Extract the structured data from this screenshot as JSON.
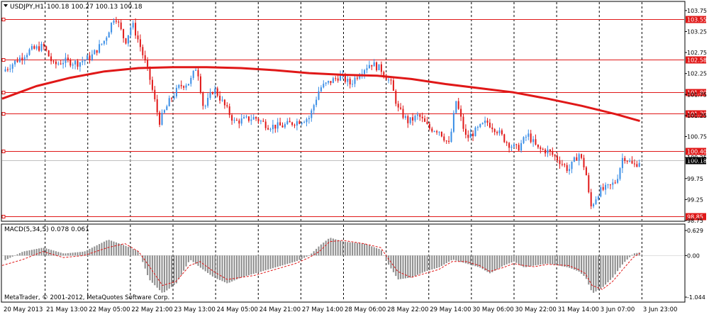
{
  "window": {
    "header_symbol": "USDJPY,H1",
    "header_ohlc": "100.18 100.27 100.13 100.18",
    "watermark": "MetaTrader, © 2001-2012, MetaQuotes Software Corp."
  },
  "colors": {
    "background": "#ffffff",
    "bull": "#3a8ee6",
    "bear": "#e01818",
    "level_line": "#e01818",
    "moving_average": "#e01818",
    "grid": "#000000",
    "current_price_line": "#c0c0c0",
    "macd_hist": "#8c8c8c",
    "macd_signal": "#e01818"
  },
  "chart_data": [
    {
      "type": "candlestick",
      "symbol": "USDJPY",
      "timeframe": "H1",
      "ylim": [
        98.75,
        103.95
      ],
      "y_ticks": [
        "103.75",
        "103.25",
        "102.75",
        "102.25",
        "101.75",
        "101.25",
        "100.75",
        "100.25",
        "99.75",
        "99.25",
        "98.75"
      ],
      "x_labels": [
        "20 May 2013",
        "21 May 13:00",
        "22 May 05:00",
        "22 May 21:00",
        "23 May 13:00",
        "24 May 05:00",
        "24 May 21:00",
        "27 May 14:00",
        "28 May 06:00",
        "28 May 22:00",
        "29 May 14:00",
        "30 May 06:00",
        "30 May 22:00",
        "31 May 14:00",
        "3 Jun 07:00",
        "3 Jun 23:00"
      ],
      "horizontal_levels": [
        {
          "label": "103.55",
          "value": 103.55
        },
        {
          "label": "102.58",
          "value": 102.58
        },
        {
          "label": "101.80",
          "value": 101.8
        },
        {
          "label": "101.30",
          "value": 101.3
        },
        {
          "label": "100.40",
          "value": 100.4
        },
        {
          "label": "98.85",
          "value": 98.85
        }
      ],
      "current_price": {
        "label": "100.18",
        "value": 100.18
      },
      "price_path": [
        {
          "x": 0.0,
          "y": 102.3
        },
        {
          "x": 0.02,
          "y": 102.55
        },
        {
          "x": 0.04,
          "y": 102.8
        },
        {
          "x": 0.06,
          "y": 102.9
        },
        {
          "x": 0.075,
          "y": 102.45
        },
        {
          "x": 0.09,
          "y": 102.55
        },
        {
          "x": 0.11,
          "y": 102.5
        },
        {
          "x": 0.13,
          "y": 102.65
        },
        {
          "x": 0.15,
          "y": 103.05
        },
        {
          "x": 0.165,
          "y": 103.65
        },
        {
          "x": 0.18,
          "y": 103.0
        },
        {
          "x": 0.19,
          "y": 103.45
        },
        {
          "x": 0.2,
          "y": 103.0
        },
        {
          "x": 0.215,
          "y": 102.2
        },
        {
          "x": 0.23,
          "y": 101.1
        },
        {
          "x": 0.245,
          "y": 101.6
        },
        {
          "x": 0.26,
          "y": 101.95
        },
        {
          "x": 0.275,
          "y": 102.05
        },
        {
          "x": 0.285,
          "y": 102.45
        },
        {
          "x": 0.295,
          "y": 101.4
        },
        {
          "x": 0.31,
          "y": 101.9
        },
        {
          "x": 0.325,
          "y": 101.5
        },
        {
          "x": 0.34,
          "y": 101.1
        },
        {
          "x": 0.355,
          "y": 101.15
        },
        {
          "x": 0.37,
          "y": 101.2
        },
        {
          "x": 0.39,
          "y": 101.0
        },
        {
          "x": 0.41,
          "y": 101.0
        },
        {
          "x": 0.43,
          "y": 101.1
        },
        {
          "x": 0.45,
          "y": 101.2
        },
        {
          "x": 0.465,
          "y": 101.9
        },
        {
          "x": 0.48,
          "y": 102.05
        },
        {
          "x": 0.495,
          "y": 102.2
        },
        {
          "x": 0.51,
          "y": 102.0
        },
        {
          "x": 0.525,
          "y": 102.3
        },
        {
          "x": 0.54,
          "y": 102.5
        },
        {
          "x": 0.555,
          "y": 102.35
        },
        {
          "x": 0.57,
          "y": 102.0
        },
        {
          "x": 0.58,
          "y": 101.4
        },
        {
          "x": 0.595,
          "y": 101.1
        },
        {
          "x": 0.61,
          "y": 101.25
        },
        {
          "x": 0.625,
          "y": 100.95
        },
        {
          "x": 0.64,
          "y": 100.9
        },
        {
          "x": 0.655,
          "y": 100.55
        },
        {
          "x": 0.665,
          "y": 101.6
        },
        {
          "x": 0.68,
          "y": 100.7
        },
        {
          "x": 0.695,
          "y": 100.9
        },
        {
          "x": 0.71,
          "y": 101.1
        },
        {
          "x": 0.725,
          "y": 100.9
        },
        {
          "x": 0.74,
          "y": 100.6
        },
        {
          "x": 0.755,
          "y": 100.45
        },
        {
          "x": 0.77,
          "y": 100.8
        },
        {
          "x": 0.785,
          "y": 100.45
        },
        {
          "x": 0.8,
          "y": 100.4
        },
        {
          "x": 0.815,
          "y": 100.2
        },
        {
          "x": 0.83,
          "y": 99.95
        },
        {
          "x": 0.845,
          "y": 100.35
        },
        {
          "x": 0.855,
          "y": 99.95
        },
        {
          "x": 0.862,
          "y": 99.05
        },
        {
          "x": 0.875,
          "y": 99.45
        },
        {
          "x": 0.89,
          "y": 99.55
        },
        {
          "x": 0.9,
          "y": 99.7
        },
        {
          "x": 0.91,
          "y": 100.3
        },
        {
          "x": 0.925,
          "y": 100.05
        },
        {
          "x": 0.935,
          "y": 100.18
        }
      ],
      "moving_average": [
        {
          "x": 0.0,
          "y": 101.65
        },
        {
          "x": 0.05,
          "y": 101.95
        },
        {
          "x": 0.1,
          "y": 102.15
        },
        {
          "x": 0.15,
          "y": 102.3
        },
        {
          "x": 0.2,
          "y": 102.38
        },
        {
          "x": 0.25,
          "y": 102.4
        },
        {
          "x": 0.3,
          "y": 102.4
        },
        {
          "x": 0.35,
          "y": 102.38
        },
        {
          "x": 0.4,
          "y": 102.33
        },
        {
          "x": 0.45,
          "y": 102.26
        },
        {
          "x": 0.5,
          "y": 102.22
        },
        {
          "x": 0.55,
          "y": 102.2
        },
        {
          "x": 0.6,
          "y": 102.12
        },
        {
          "x": 0.65,
          "y": 102.0
        },
        {
          "x": 0.7,
          "y": 101.9
        },
        {
          "x": 0.75,
          "y": 101.8
        },
        {
          "x": 0.8,
          "y": 101.65
        },
        {
          "x": 0.85,
          "y": 101.48
        },
        {
          "x": 0.9,
          "y": 101.28
        },
        {
          "x": 0.935,
          "y": 101.12
        }
      ]
    },
    {
      "type": "histogram",
      "title": "MACD(5,34,5) 0.078 0.061",
      "ylim": [
        -1.044,
        0.629
      ],
      "y_ticks": [
        "0.629",
        "0.00",
        "-1.044"
      ],
      "macd_path": [
        {
          "x": 0.0,
          "y": -0.15
        },
        {
          "x": 0.03,
          "y": 0.1
        },
        {
          "x": 0.06,
          "y": 0.2
        },
        {
          "x": 0.09,
          "y": 0.05
        },
        {
          "x": 0.12,
          "y": 0.1
        },
        {
          "x": 0.155,
          "y": 0.4
        },
        {
          "x": 0.18,
          "y": 0.25
        },
        {
          "x": 0.2,
          "y": 0.1
        },
        {
          "x": 0.215,
          "y": -0.6
        },
        {
          "x": 0.235,
          "y": -0.95
        },
        {
          "x": 0.255,
          "y": -0.7
        },
        {
          "x": 0.275,
          "y": -0.1
        },
        {
          "x": 0.29,
          "y": -0.3
        },
        {
          "x": 0.31,
          "y": -0.55
        },
        {
          "x": 0.33,
          "y": -0.7
        },
        {
          "x": 0.35,
          "y": -0.55
        },
        {
          "x": 0.37,
          "y": -0.45
        },
        {
          "x": 0.4,
          "y": -0.3
        },
        {
          "x": 0.43,
          "y": -0.15
        },
        {
          "x": 0.45,
          "y": 0.0
        },
        {
          "x": 0.465,
          "y": 0.25
        },
        {
          "x": 0.48,
          "y": 0.45
        },
        {
          "x": 0.5,
          "y": 0.35
        },
        {
          "x": 0.53,
          "y": 0.3
        },
        {
          "x": 0.555,
          "y": 0.15
        },
        {
          "x": 0.565,
          "y": -0.2
        },
        {
          "x": 0.58,
          "y": -0.6
        },
        {
          "x": 0.6,
          "y": -0.55
        },
        {
          "x": 0.62,
          "y": -0.4
        },
        {
          "x": 0.64,
          "y": -0.3
        },
        {
          "x": 0.66,
          "y": -0.1
        },
        {
          "x": 0.68,
          "y": -0.2
        },
        {
          "x": 0.7,
          "y": -0.3
        },
        {
          "x": 0.715,
          "y": -0.45
        },
        {
          "x": 0.735,
          "y": -0.25
        },
        {
          "x": 0.75,
          "y": -0.15
        },
        {
          "x": 0.765,
          "y": -0.3
        },
        {
          "x": 0.78,
          "y": -0.25
        },
        {
          "x": 0.8,
          "y": -0.2
        },
        {
          "x": 0.83,
          "y": -0.3
        },
        {
          "x": 0.845,
          "y": -0.4
        },
        {
          "x": 0.855,
          "y": -0.55
        },
        {
          "x": 0.865,
          "y": -0.95
        },
        {
          "x": 0.88,
          "y": -0.8
        },
        {
          "x": 0.895,
          "y": -0.55
        },
        {
          "x": 0.91,
          "y": -0.2
        },
        {
          "x": 0.925,
          "y": 0.05
        },
        {
          "x": 0.935,
          "y": 0.078
        }
      ],
      "signal_path": [
        {
          "x": 0.0,
          "y": -0.25
        },
        {
          "x": 0.03,
          "y": -0.1
        },
        {
          "x": 0.06,
          "y": 0.1
        },
        {
          "x": 0.09,
          "y": -0.05
        },
        {
          "x": 0.12,
          "y": 0.0
        },
        {
          "x": 0.155,
          "y": 0.2
        },
        {
          "x": 0.18,
          "y": 0.3
        },
        {
          "x": 0.2,
          "y": 0.1
        },
        {
          "x": 0.215,
          "y": -0.25
        },
        {
          "x": 0.235,
          "y": -0.75
        },
        {
          "x": 0.255,
          "y": -0.65
        },
        {
          "x": 0.275,
          "y": -0.25
        },
        {
          "x": 0.29,
          "y": -0.15
        },
        {
          "x": 0.31,
          "y": -0.4
        },
        {
          "x": 0.33,
          "y": -0.6
        },
        {
          "x": 0.35,
          "y": -0.55
        },
        {
          "x": 0.37,
          "y": -0.5
        },
        {
          "x": 0.4,
          "y": -0.35
        },
        {
          "x": 0.43,
          "y": -0.2
        },
        {
          "x": 0.45,
          "y": -0.05
        },
        {
          "x": 0.465,
          "y": 0.1
        },
        {
          "x": 0.48,
          "y": 0.35
        },
        {
          "x": 0.5,
          "y": 0.38
        },
        {
          "x": 0.53,
          "y": 0.3
        },
        {
          "x": 0.555,
          "y": 0.2
        },
        {
          "x": 0.565,
          "y": -0.05
        },
        {
          "x": 0.58,
          "y": -0.4
        },
        {
          "x": 0.6,
          "y": -0.55
        },
        {
          "x": 0.62,
          "y": -0.45
        },
        {
          "x": 0.64,
          "y": -0.35
        },
        {
          "x": 0.66,
          "y": -0.15
        },
        {
          "x": 0.68,
          "y": -0.15
        },
        {
          "x": 0.7,
          "y": -0.25
        },
        {
          "x": 0.715,
          "y": -0.4
        },
        {
          "x": 0.735,
          "y": -0.3
        },
        {
          "x": 0.75,
          "y": -0.2
        },
        {
          "x": 0.765,
          "y": -0.25
        },
        {
          "x": 0.78,
          "y": -0.28
        },
        {
          "x": 0.8,
          "y": -0.22
        },
        {
          "x": 0.83,
          "y": -0.25
        },
        {
          "x": 0.845,
          "y": -0.35
        },
        {
          "x": 0.855,
          "y": -0.45
        },
        {
          "x": 0.865,
          "y": -0.75
        },
        {
          "x": 0.88,
          "y": -0.85
        },
        {
          "x": 0.895,
          "y": -0.65
        },
        {
          "x": 0.91,
          "y": -0.35
        },
        {
          "x": 0.925,
          "y": -0.05
        },
        {
          "x": 0.935,
          "y": 0.061
        }
      ]
    }
  ]
}
